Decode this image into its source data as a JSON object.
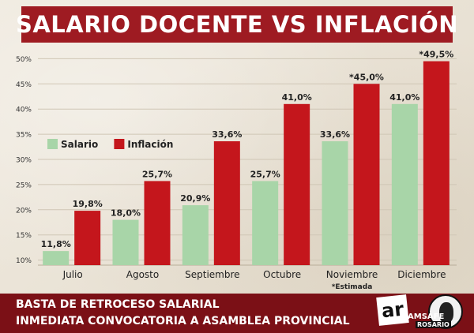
{
  "title": "SALARIO DOCENTE VS INFLACIÓN",
  "footer": {
    "line1": "BASTA DE RETROCESO SALARIAL",
    "line2": "INMEDIATA CONVOCATORIA A ASAMBLEA PROVINCIAL"
  },
  "logo": {
    "mark": "ar",
    "name": "AMSAFE",
    "city": "ROSARIO"
  },
  "footnote": "*Estimada",
  "colors": {
    "salario": "#a8d5a8",
    "inflacion": "#c4161c",
    "banner": "#9e1b22",
    "footer": "#7b1016"
  },
  "chart_data": {
    "type": "bar",
    "title": "SALARIO DOCENTE VS INFLACIÓN",
    "categories": [
      "Julio",
      "Agosto",
      "Septiembre",
      "Octubre",
      "Noviembre",
      "Diciembre"
    ],
    "series": [
      {
        "name": "Salario",
        "color": "#a8d5a8",
        "values": [
          11.8,
          18.0,
          20.9,
          25.7,
          33.6,
          41.0
        ],
        "labels": [
          "11,8%",
          "18,0%",
          "20,9%",
          "25,7%",
          "33,6%",
          "41,0%"
        ]
      },
      {
        "name": "Inflación",
        "color": "#c4161c",
        "values": [
          19.8,
          25.7,
          33.6,
          41.0,
          45.0,
          49.5
        ],
        "labels": [
          "19,8%",
          "25,7%",
          "33,6%",
          "41,0%",
          "*45,0%",
          "*49,5%"
        ]
      }
    ],
    "yticks": [
      10,
      15,
      20,
      25,
      30,
      35,
      40,
      45,
      50
    ],
    "ytick_labels": [
      "10%",
      "15%",
      "20%",
      "25%",
      "30%",
      "35%",
      "40%",
      "45%",
      "50%"
    ],
    "ylim": [
      9,
      51
    ],
    "grid": true,
    "legend": "left"
  }
}
